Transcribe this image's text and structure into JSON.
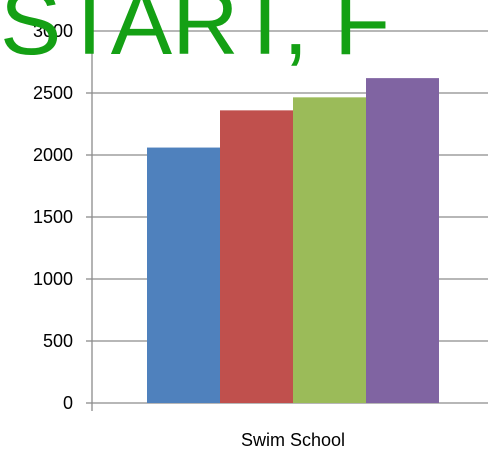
{
  "banner": {
    "text": "START, F",
    "color": "#14a014"
  },
  "chart_data": {
    "type": "bar",
    "categories": [
      "Swim School"
    ],
    "series": [
      {
        "values": [
          2060
        ],
        "color": "#4f81bd"
      },
      {
        "values": [
          2360
        ],
        "color": "#c0504d"
      },
      {
        "values": [
          2465
        ],
        "color": "#9bbb59"
      },
      {
        "values": [
          2620
        ],
        "color": "#8064a2"
      }
    ],
    "ylim": [
      0,
      3000
    ],
    "y_ticks": [
      0,
      500,
      1000,
      1500,
      2000,
      2500,
      3000
    ],
    "grid": true,
    "legend": "none"
  }
}
